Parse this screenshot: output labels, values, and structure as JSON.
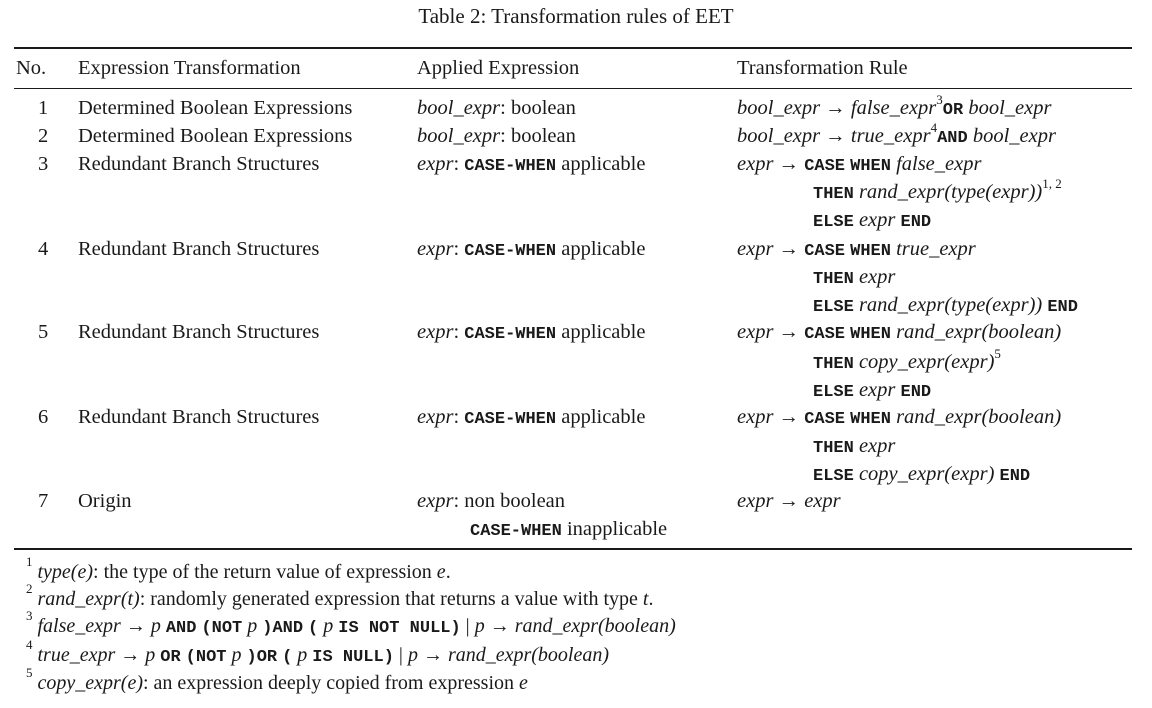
{
  "caption": "Table 2: Transformation rules of EET",
  "headers": {
    "no": "No.",
    "expression_transformation": "Expression Transformation",
    "applied_expression": "Applied Expression",
    "transformation_rule": "Transformation Rule"
  },
  "rows": [
    {
      "no": "1",
      "transformation": "Determined Boolean Expressions",
      "applied": {
        "var": "bool_expr",
        "rest": ": boolean"
      },
      "rule": {
        "lhs": "bool_expr",
        "arrow": "→",
        "t1": "false_expr",
        "sup": "3",
        "kw": "OR",
        "t2": "bool_expr"
      }
    },
    {
      "no": "2",
      "transformation": "Determined Boolean Expressions",
      "applied": {
        "var": "bool_expr",
        "rest": ": boolean"
      },
      "rule": {
        "lhs": "bool_expr",
        "arrow": "→",
        "t1": "true_expr",
        "sup": "4",
        "kw": "AND",
        "t2": "bool_expr"
      }
    },
    {
      "no": "3",
      "transformation": "Redundant Branch Structures",
      "applied": {
        "var": "expr",
        "sep": ":",
        "kw": "CASE-WHEN",
        "rest": "applicable"
      },
      "rule": {
        "lhs": "expr",
        "arrow": "→",
        "l1_kw1": "CASE",
        "l1_kw2": "WHEN",
        "l1_val": "false_expr",
        "l2_kw": "THEN",
        "l2_val": "rand_expr(type(expr))",
        "l2_sup": "1, 2",
        "l3_kw": "ELSE",
        "l3_val": "expr",
        "l3_end": "END"
      }
    },
    {
      "no": "4",
      "transformation": "Redundant Branch Structures",
      "applied": {
        "var": "expr",
        "sep": ":",
        "kw": "CASE-WHEN",
        "rest": "applicable"
      },
      "rule": {
        "lhs": "expr",
        "arrow": "→",
        "l1_kw1": "CASE",
        "l1_kw2": "WHEN",
        "l1_val": "true_expr",
        "l2_kw": "THEN",
        "l2_val": "expr",
        "l3_kw": "ELSE",
        "l3_val": "rand_expr(type(expr))",
        "l3_end": "END"
      }
    },
    {
      "no": "5",
      "transformation": "Redundant Branch Structures",
      "applied": {
        "var": "expr",
        "sep": ":",
        "kw": "CASE-WHEN",
        "rest": "applicable"
      },
      "rule": {
        "lhs": "expr",
        "arrow": "→",
        "l1_kw1": "CASE",
        "l1_kw2": "WHEN",
        "l1_val": "rand_expr(boolean)",
        "l2_kw": "THEN",
        "l2_val": "copy_expr(expr)",
        "l2_sup": "5",
        "l3_kw": "ELSE",
        "l3_val": "expr",
        "l3_end": "END"
      }
    },
    {
      "no": "6",
      "transformation": "Redundant Branch Structures",
      "applied": {
        "var": "expr",
        "sep": ":",
        "kw": "CASE-WHEN",
        "rest": "applicable"
      },
      "rule": {
        "lhs": "expr",
        "arrow": "→",
        "l1_kw1": "CASE",
        "l1_kw2": "WHEN",
        "l1_val": "rand_expr(boolean)",
        "l2_kw": "THEN",
        "l2_val": "expr",
        "l3_kw": "ELSE",
        "l3_val": "copy_expr(expr)",
        "l3_end": "END"
      }
    },
    {
      "no": "7",
      "transformation": "Origin",
      "applied": {
        "var": "expr",
        "rest": ": non boolean",
        "kw2": "CASE-WHEN",
        "rest2": "inapplicable"
      },
      "rule": {
        "lhs": "expr",
        "arrow": "→",
        "rhs": "expr"
      }
    }
  ],
  "footnotes": {
    "f1": {
      "mark": "1",
      "term": "type(e)",
      "text": ": the type of the return value of expression ",
      "var": "e",
      "end": "."
    },
    "f2": {
      "mark": "2",
      "term": "rand_expr(t)",
      "text": ": randomly generated expression that returns a value with type ",
      "var": "t",
      "end": "."
    },
    "f3": {
      "mark": "3",
      "term": "false_expr",
      "arrow": "→",
      "p": "p",
      "kw_and": "AND",
      "kw_open": "(NOT",
      "kw_close": ")",
      "kw_and2": "AND",
      "kw_paren": "(",
      "kw_isnotnull": "IS NOT NULL)",
      "bar": "|",
      "rhs": "rand_expr(boolean)"
    },
    "f4": {
      "mark": "4",
      "term": "true_expr",
      "arrow": "→",
      "p": "p",
      "kw_or": "OR",
      "kw_open": "(NOT",
      "kw_close": ")",
      "kw_or2": "OR",
      "kw_paren": "(",
      "kw_isnull": "IS NULL)",
      "bar": "|",
      "rhs": "rand_expr(boolean)"
    },
    "f5": {
      "mark": "5",
      "term": "copy_expr(e)",
      "text": ": an expression deeply copied from expression ",
      "var": "e"
    }
  }
}
